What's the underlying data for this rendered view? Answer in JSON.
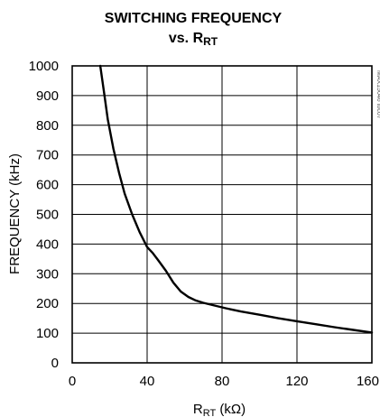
{
  "chart_data": {
    "type": "line",
    "title_line1": "SWITCHING FREQUENCY",
    "title_line2_prefix": "vs. R",
    "title_line2_sub": "RT",
    "xlabel_main": "R",
    "xlabel_sub": "RT",
    "xlabel_unit": " (kΩ)",
    "ylabel": "FREQUENCY (kHz)",
    "part_id": "MAX15046 toc07",
    "xlim": [
      0,
      160
    ],
    "ylim": [
      0,
      1000
    ],
    "x_ticks": [
      0,
      40,
      80,
      120,
      160
    ],
    "y_ticks": [
      0,
      100,
      200,
      300,
      400,
      500,
      600,
      700,
      800,
      900,
      1000
    ],
    "x_tick_labels": [
      "0",
      "40",
      "80",
      "120",
      "160"
    ],
    "y_tick_labels": [
      "0",
      "100",
      "200",
      "300",
      "400",
      "500",
      "600",
      "700",
      "800",
      "900",
      "1000"
    ],
    "grid": true,
    "series": [
      {
        "x": [
          15,
          17,
          19,
          22,
          25,
          28,
          32,
          36,
          40,
          43,
          46,
          50,
          54,
          58,
          62,
          66,
          70,
          76,
          82,
          90,
          100,
          110,
          120,
          130,
          140,
          150,
          160
        ],
        "y": [
          1000,
          910,
          820,
          720,
          640,
          570,
          500,
          440,
          390,
          370,
          345,
          310,
          270,
          240,
          222,
          210,
          202,
          193,
          184,
          173,
          162,
          150,
          140,
          130,
          120,
          111,
          102
        ]
      }
    ],
    "colors": {
      "line": "#000000",
      "grid": "#000000",
      "frame": "#000000"
    }
  }
}
